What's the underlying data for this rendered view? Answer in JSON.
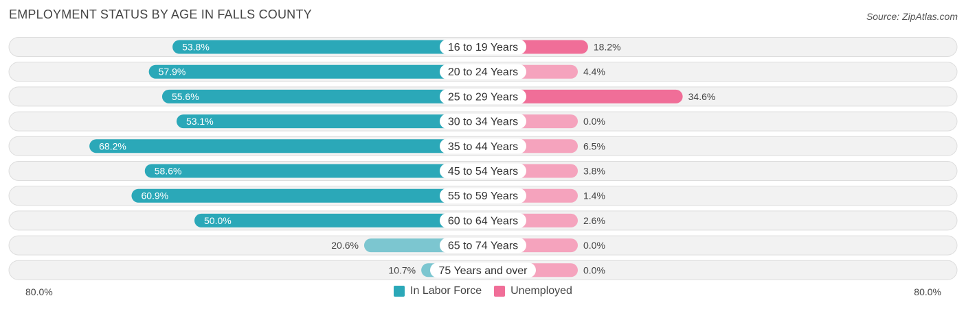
{
  "title": "EMPLOYMENT STATUS BY AGE IN FALLS COUNTY",
  "source": "Source: ZipAtlas.com",
  "colors": {
    "labor_dark": "#2ba8b8",
    "labor_light": "#7cc6d0",
    "unemp_dark": "#f06e98",
    "unemp_light": "#f5a3bd",
    "row_bg": "#f2f2f2",
    "row_border": "#dddddd"
  },
  "chart_data": {
    "type": "bar",
    "orientation": "horizontal-diverging",
    "title": "EMPLOYMENT STATUS BY AGE IN FALLS COUNTY",
    "categories": [
      "16 to 19 Years",
      "20 to 24 Years",
      "25 to 29 Years",
      "30 to 34 Years",
      "35 to 44 Years",
      "45 to 54 Years",
      "55 to 59 Years",
      "60 to 64 Years",
      "65 to 74 Years",
      "75 Years and over"
    ],
    "series": [
      {
        "name": "In Labor Force",
        "values": [
          53.8,
          57.9,
          55.6,
          53.1,
          68.2,
          58.6,
          60.9,
          50.0,
          20.6,
          10.7
        ],
        "labels": [
          "53.8%",
          "57.9%",
          "55.6%",
          "53.1%",
          "68.2%",
          "58.6%",
          "60.9%",
          "50.0%",
          "20.6%",
          "10.7%"
        ]
      },
      {
        "name": "Unemployed",
        "values": [
          18.2,
          4.4,
          34.6,
          0.0,
          6.5,
          3.8,
          1.4,
          2.6,
          0.0,
          0.0
        ],
        "labels": [
          "18.2%",
          "4.4%",
          "34.6%",
          "0.0%",
          "6.5%",
          "3.8%",
          "1.4%",
          "2.6%",
          "0.0%",
          "0.0%"
        ]
      }
    ],
    "xlim": [
      0,
      80
    ],
    "axis_left_label": "80.0%",
    "axis_right_label": "80.0%",
    "legend_position": "bottom-center"
  }
}
